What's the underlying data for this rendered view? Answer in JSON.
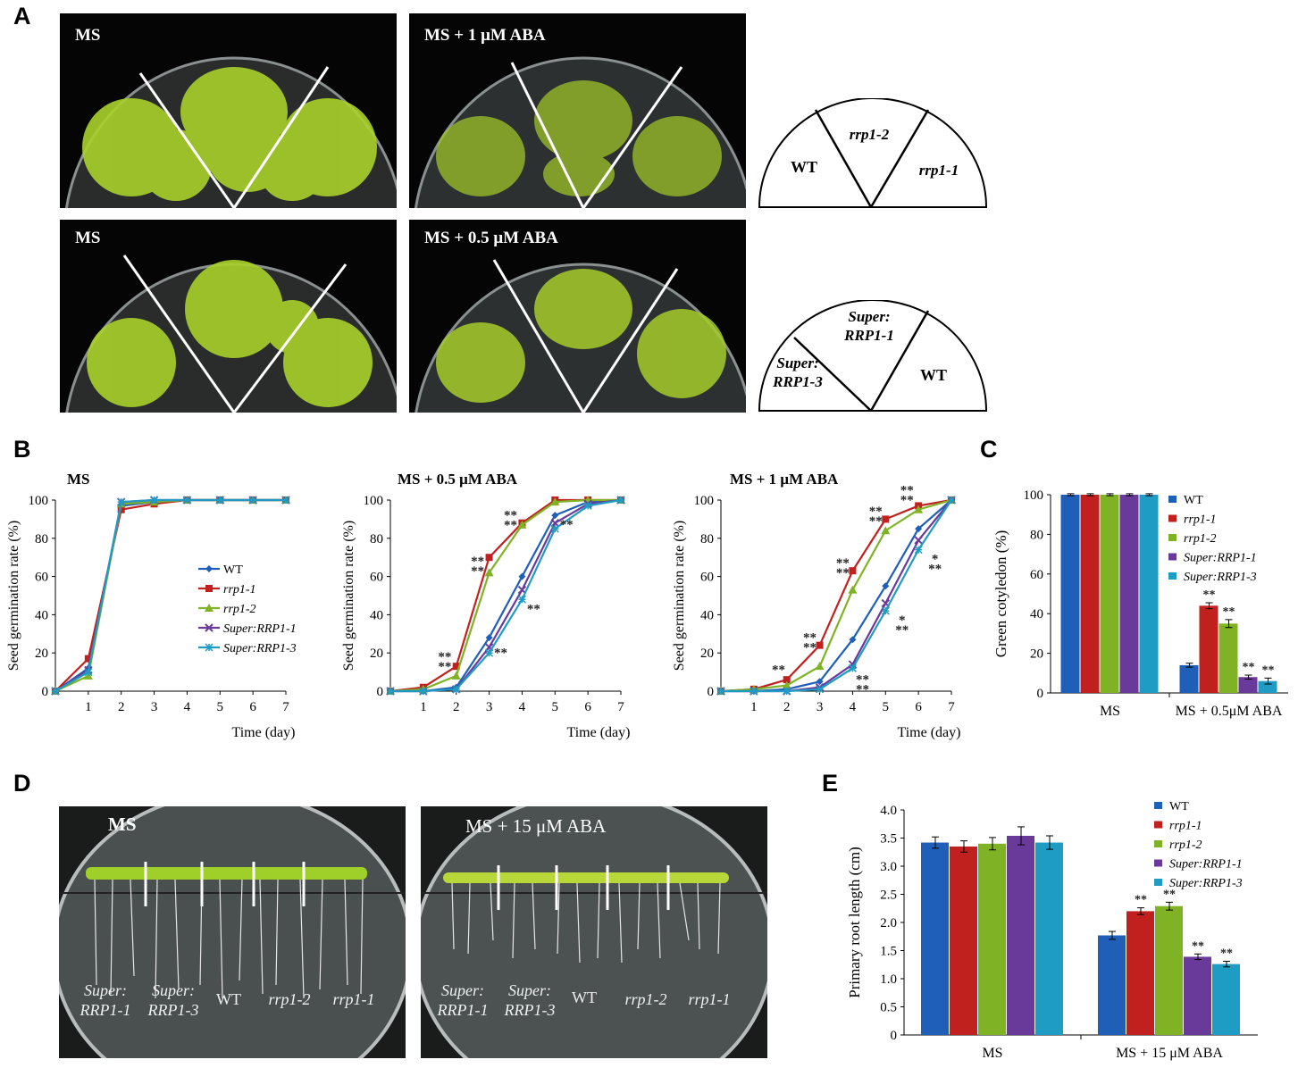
{
  "panels": {
    "a": "A",
    "b": "B",
    "c": "C",
    "d": "D",
    "e": "E"
  },
  "panel_a": {
    "photos": [
      "MS",
      "MS + 1 μM ABA",
      "MS",
      "MS + 0.5 μM ABA"
    ],
    "diagram1": {
      "left": "WT",
      "middle": "rrp1-2",
      "right": "rrp1-1"
    },
    "diagram2": {
      "left": "Super:\nRRP1-3",
      "middle": "Super:\nRRP1-1",
      "right": "WT"
    }
  },
  "panel_d": {
    "photos": [
      "MS",
      "MS + 15 μM ABA"
    ],
    "plate_labels": [
      {
        "text": "Super:\nRRP1-1",
        "italic": true
      },
      {
        "text": "Super:\nRRP1-3",
        "italic": true
      },
      {
        "text": "WT",
        "italic": false
      },
      {
        "text": "rrp1-2",
        "italic": true
      },
      {
        "text": "rrp1-1",
        "italic": true
      }
    ]
  },
  "colors": {
    "WT": "#1f5fb8",
    "rrp1-1": "#c0211f",
    "rrp1-2": "#7fb325",
    "Super:RRP1-1": "#6a3a9a",
    "Super:RRP1-3": "#1f9cc4"
  },
  "chart_data": [
    {
      "id": "B1",
      "type": "line",
      "title": "MS",
      "xlabel": "Time (day)",
      "ylabel": "Seed germination rate (%)",
      "xlim": [
        0,
        7
      ],
      "ylim": [
        0,
        100
      ],
      "x": [
        0,
        1,
        2,
        3,
        4,
        5,
        6,
        7
      ],
      "xticks": [
        "",
        "1",
        "2",
        "3",
        "4",
        "5",
        "6",
        "7"
      ],
      "yticks": [
        "0",
        "20",
        "40",
        "60",
        "80",
        "100"
      ],
      "legend": [
        "WT",
        "rrp1-1",
        "rrp1-2",
        "Super:RRP1-1",
        "Super:RRP1-3"
      ],
      "series": [
        {
          "name": "WT",
          "values": [
            0,
            12,
            97,
            99,
            100,
            100,
            100,
            100
          ]
        },
        {
          "name": "rrp1-1",
          "values": [
            0,
            17,
            95,
            98,
            100,
            100,
            100,
            100
          ]
        },
        {
          "name": "rrp1-2",
          "values": [
            0,
            8,
            98,
            99,
            100,
            100,
            100,
            100
          ]
        },
        {
          "name": "Super:RRP1-1",
          "values": [
            0,
            11,
            99,
            100,
            100,
            100,
            100,
            100
          ]
        },
        {
          "name": "Super:RRP1-3",
          "values": [
            0,
            10,
            99,
            100,
            100,
            100,
            100,
            100
          ]
        }
      ],
      "annotations": []
    },
    {
      "id": "B2",
      "type": "line",
      "title": "MS + 0.5 μM ABA",
      "xlabel": "Time (day)",
      "ylabel": "Seed germination rate (%)",
      "xlim": [
        0,
        7
      ],
      "ylim": [
        0,
        100
      ],
      "x": [
        0,
        1,
        2,
        3,
        4,
        5,
        6,
        7
      ],
      "xticks": [
        "",
        "1",
        "2",
        "3",
        "4",
        "5",
        "6",
        "7"
      ],
      "yticks": [
        "0",
        "20",
        "40",
        "60",
        "80",
        "100"
      ],
      "series": [
        {
          "name": "WT",
          "values": [
            0,
            0,
            2,
            28,
            60,
            92,
            99,
            100
          ]
        },
        {
          "name": "rrp1-1",
          "values": [
            0,
            2,
            13,
            70,
            88,
            100,
            100,
            100
          ]
        },
        {
          "name": "rrp1-2",
          "values": [
            0,
            1,
            8,
            62,
            87,
            99,
            100,
            100
          ]
        },
        {
          "name": "Super:RRP1-1",
          "values": [
            0,
            0,
            1,
            23,
            53,
            88,
            98,
            100
          ]
        },
        {
          "name": "Super:RRP1-3",
          "values": [
            0,
            0,
            1,
            20,
            48,
            85,
            97,
            100
          ]
        }
      ],
      "annotations": [
        {
          "x": 1.65,
          "y": 16,
          "text": "**\n**"
        },
        {
          "x": 2.65,
          "y": 66,
          "text": "**\n**"
        },
        {
          "x": 3.65,
          "y": 90,
          "text": "**\n**"
        },
        {
          "x": 3.35,
          "y": 18,
          "text": "**"
        },
        {
          "x": 4.35,
          "y": 41,
          "text": "**"
        },
        {
          "x": 5.35,
          "y": 85,
          "text": "**"
        }
      ]
    },
    {
      "id": "B3",
      "type": "line",
      "title": "MS + 1 μM ABA",
      "xlabel": "Time (day)",
      "ylabel": "Seed germination rate (%)",
      "xlim": [
        0,
        7
      ],
      "ylim": [
        0,
        100
      ],
      "x": [
        0,
        1,
        2,
        3,
        4,
        5,
        6,
        7
      ],
      "xticks": [
        "",
        "1",
        "2",
        "3",
        "4",
        "5",
        "6",
        "7"
      ],
      "yticks": [
        "0",
        "20",
        "40",
        "60",
        "80",
        "100"
      ],
      "series": [
        {
          "name": "WT",
          "values": [
            0,
            0,
            1,
            5,
            27,
            55,
            85,
            100
          ]
        },
        {
          "name": "rrp1-1",
          "values": [
            0,
            1,
            6,
            24,
            63,
            90,
            97,
            100
          ]
        },
        {
          "name": "rrp1-2",
          "values": [
            0,
            1,
            3,
            13,
            53,
            84,
            95,
            100
          ]
        },
        {
          "name": "Super:RRP1-1",
          "values": [
            0,
            0,
            0,
            2,
            14,
            46,
            79,
            100
          ]
        },
        {
          "name": "Super:RRP1-3",
          "values": [
            0,
            0,
            0,
            1,
            12,
            42,
            74,
            100
          ]
        }
      ],
      "annotations": [
        {
          "x": 1.75,
          "y": 9,
          "text": "**"
        },
        {
          "x": 2.7,
          "y": 26,
          "text": "**\n**"
        },
        {
          "x": 3.7,
          "y": 65,
          "text": "**\n**"
        },
        {
          "x": 4.7,
          "y": 92,
          "text": "**\n**"
        },
        {
          "x": 5.65,
          "y": 103,
          "text": "**\n**"
        },
        {
          "x": 4.3,
          "y": 4,
          "text": "**\n**"
        },
        {
          "x": 5.5,
          "y": 35,
          "text": "*\n**"
        },
        {
          "x": 6.5,
          "y": 67,
          "text": "*\n**"
        }
      ]
    },
    {
      "id": "C",
      "type": "bar",
      "xlabel": "",
      "ylabel": "Green cotyledon (%)",
      "ylim": [
        0,
        100
      ],
      "categories": [
        "MS",
        "MS + 0.5μM ABA"
      ],
      "yticks": [
        "0",
        "20",
        "40",
        "60",
        "80",
        "100"
      ],
      "series": [
        {
          "name": "WT",
          "values": [
            100,
            14
          ],
          "errors": [
            0.5,
            1
          ]
        },
        {
          "name": "rrp1-1",
          "values": [
            100,
            44
          ],
          "errors": [
            0.5,
            1.5
          ]
        },
        {
          "name": "rrp1-2",
          "values": [
            100,
            35
          ],
          "errors": [
            0.5,
            2
          ]
        },
        {
          "name": "Super:RRP1-1",
          "values": [
            100,
            8
          ],
          "errors": [
            0.5,
            1
          ]
        },
        {
          "name": "Super:RRP1-3",
          "values": [
            100,
            6
          ],
          "errors": [
            0.5,
            1.5
          ]
        }
      ],
      "significance": [
        [
          "",
          ""
        ],
        [
          "",
          "**"
        ],
        [
          "",
          "**"
        ],
        [
          "",
          "**"
        ],
        [
          "",
          "**"
        ]
      ]
    },
    {
      "id": "E",
      "type": "bar",
      "xlabel": "",
      "ylabel": "Primary root length (cm)",
      "ylim": [
        0,
        4
      ],
      "categories": [
        "MS",
        "MS + 15 μM ABA"
      ],
      "yticks": [
        "0",
        "0.5",
        "1.0",
        "1.5",
        "2.0",
        "2.5",
        "3.0",
        "3.5",
        "4.0"
      ],
      "series": [
        {
          "name": "WT",
          "values": [
            3.42,
            1.77
          ],
          "errors": [
            0.1,
            0.07
          ]
        },
        {
          "name": "rrp1-1",
          "values": [
            3.35,
            2.2
          ],
          "errors": [
            0.1,
            0.06
          ]
        },
        {
          "name": "rrp1-2",
          "values": [
            3.4,
            2.29
          ],
          "errors": [
            0.11,
            0.07
          ]
        },
        {
          "name": "Super:RRP1-1",
          "values": [
            3.54,
            1.39
          ],
          "errors": [
            0.16,
            0.05
          ]
        },
        {
          "name": "Super:RRP1-3",
          "values": [
            3.42,
            1.26
          ],
          "errors": [
            0.12,
            0.05
          ]
        }
      ],
      "significance": [
        [
          "",
          ""
        ],
        [
          "",
          "**"
        ],
        [
          "",
          "**"
        ],
        [
          "",
          "**"
        ],
        [
          "",
          "**"
        ]
      ]
    }
  ]
}
